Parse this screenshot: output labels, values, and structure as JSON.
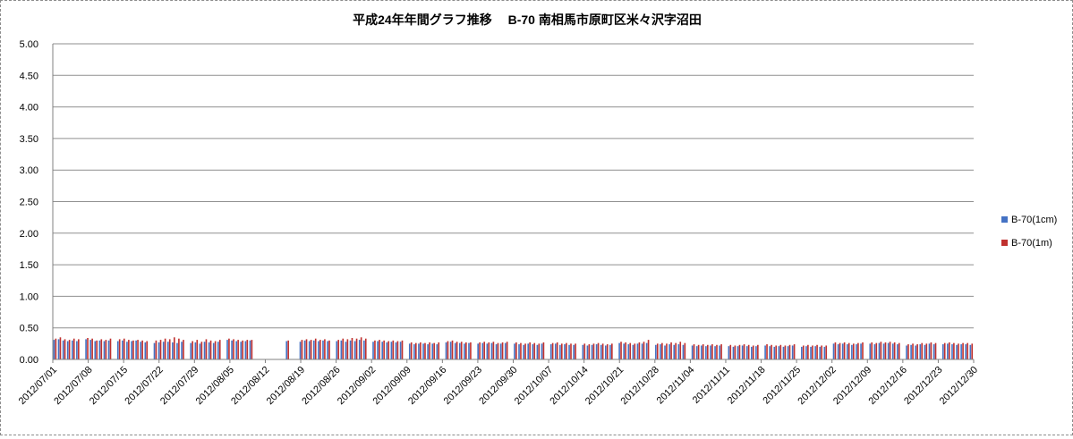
{
  "chart_data": {
    "type": "bar",
    "title": "平成24年年間グラフ推移　 B-70 南相馬市原町区米々沢字沼田",
    "xlabel": "",
    "ylabel": "",
    "ylim": [
      0,
      5
    ],
    "yticks": [
      "0.00",
      "0.50",
      "1.00",
      "1.50",
      "2.00",
      "2.50",
      "3.00",
      "3.50",
      "4.00",
      "4.50",
      "5.00"
    ],
    "grid": true,
    "legend_position": "right",
    "x_start": "2012/07/01",
    "x_end": "2012/12/30",
    "xtick_labels": [
      "2012/07/01",
      "2012/07/08",
      "2012/07/15",
      "2012/07/22",
      "2012/07/29",
      "2012/08/05",
      "2012/08/12",
      "2012/08/19",
      "2012/08/26",
      "2012/09/02",
      "2012/09/09",
      "2012/09/16",
      "2012/09/23",
      "2012/09/30",
      "2012/10/07",
      "2012/10/14",
      "2012/10/21",
      "2012/10/28",
      "2012/11/04",
      "2012/11/11",
      "2012/11/18",
      "2012/11/25",
      "2012/12/02",
      "2012/12/09",
      "2012/12/16",
      "2012/12/23",
      "2012/12/30"
    ],
    "series": [
      {
        "name": "B-70(1cm)",
        "color": "#4472C4",
        "values": [
          0.31,
          0.32,
          0.3,
          0.29,
          0.3,
          0.29,
          null,
          0.32,
          0.31,
          0.29,
          0.3,
          0.29,
          0.3,
          null,
          0.29,
          0.3,
          0.28,
          0.29,
          0.3,
          0.28,
          0.27,
          null,
          0.26,
          0.27,
          0.28,
          0.28,
          0.27,
          0.26,
          0.28,
          null,
          0.26,
          0.27,
          0.25,
          0.28,
          0.27,
          0.26,
          0.28,
          null,
          0.31,
          0.3,
          0.29,
          0.28,
          0.29,
          0.3,
          null,
          null,
          null,
          null,
          null,
          null,
          null,
          0.29,
          null,
          null,
          0.28,
          0.3,
          0.29,
          0.3,
          0.29,
          0.3,
          0.29,
          null,
          0.29,
          0.3,
          0.28,
          0.3,
          0.29,
          0.31,
          0.3,
          null,
          0.28,
          0.29,
          0.28,
          0.27,
          0.28,
          0.27,
          0.28,
          null,
          0.25,
          0.24,
          0.25,
          0.25,
          0.24,
          0.25,
          0.24,
          null,
          0.27,
          0.28,
          0.26,
          0.26,
          0.25,
          0.26,
          null,
          0.25,
          0.26,
          0.25,
          0.26,
          0.24,
          0.25,
          0.26,
          null,
          0.25,
          0.24,
          0.23,
          0.25,
          0.24,
          0.23,
          0.25,
          null,
          0.24,
          0.25,
          0.23,
          0.24,
          0.23,
          0.23,
          null,
          0.23,
          0.22,
          0.23,
          0.24,
          0.23,
          0.22,
          0.23,
          null,
          0.26,
          0.25,
          0.24,
          0.23,
          0.25,
          0.25,
          0.26,
          null,
          0.23,
          0.24,
          0.22,
          0.24,
          0.23,
          0.24,
          0.23,
          null,
          0.22,
          0.21,
          0.22,
          0.21,
          0.22,
          0.21,
          0.22,
          null,
          0.21,
          0.2,
          0.21,
          0.22,
          0.21,
          0.2,
          0.21,
          null,
          0.22,
          0.21,
          0.2,
          0.21,
          0.2,
          0.21,
          0.22,
          null,
          0.2,
          0.21,
          0.2,
          0.21,
          0.2,
          0.2,
          null,
          0.25,
          0.24,
          0.25,
          0.24,
          0.23,
          0.24,
          0.25,
          null,
          0.25,
          0.24,
          0.26,
          0.25,
          0.26,
          0.25,
          0.24,
          null,
          0.22,
          0.23,
          0.22,
          0.24,
          0.23,
          0.25,
          0.24,
          null,
          0.24,
          0.25,
          0.24,
          0.23,
          0.24,
          0.24,
          0.23
        ]
      },
      {
        "name": "B-70(1m)",
        "color": "#C0312F",
        "values": [
          0.33,
          0.35,
          0.32,
          0.31,
          0.33,
          0.32,
          null,
          0.34,
          0.33,
          0.3,
          0.32,
          0.31,
          0.33,
          null,
          0.32,
          0.33,
          0.31,
          0.3,
          0.31,
          0.3,
          0.29,
          null,
          0.3,
          0.31,
          0.33,
          0.32,
          0.35,
          0.33,
          0.31,
          null,
          0.29,
          0.31,
          0.28,
          0.32,
          0.3,
          0.29,
          0.31,
          null,
          0.33,
          0.32,
          0.31,
          0.3,
          0.31,
          0.31,
          null,
          null,
          null,
          null,
          null,
          null,
          null,
          0.3,
          null,
          null,
          0.31,
          0.32,
          0.31,
          0.33,
          0.31,
          0.32,
          0.3,
          null,
          0.31,
          0.33,
          0.32,
          0.34,
          0.33,
          0.35,
          0.33,
          null,
          0.3,
          0.31,
          0.3,
          0.29,
          0.3,
          0.29,
          0.3,
          null,
          0.27,
          0.26,
          0.27,
          0.26,
          0.27,
          0.26,
          0.27,
          null,
          0.29,
          0.3,
          0.28,
          0.28,
          0.27,
          0.27,
          null,
          0.27,
          0.28,
          0.27,
          0.28,
          0.26,
          0.27,
          0.28,
          null,
          0.27,
          0.26,
          0.25,
          0.27,
          0.26,
          0.25,
          0.27,
          null,
          0.26,
          0.27,
          0.25,
          0.26,
          0.25,
          0.25,
          null,
          0.25,
          0.24,
          0.25,
          0.26,
          0.25,
          0.24,
          0.25,
          null,
          0.28,
          0.27,
          0.26,
          0.25,
          0.27,
          0.28,
          0.31,
          null,
          0.25,
          0.26,
          0.25,
          0.27,
          0.26,
          0.28,
          0.26,
          null,
          0.24,
          0.23,
          0.24,
          0.23,
          0.24,
          0.23,
          0.24,
          null,
          0.23,
          0.22,
          0.23,
          0.24,
          0.23,
          0.22,
          0.23,
          null,
          0.24,
          0.23,
          0.22,
          0.23,
          0.22,
          0.23,
          0.24,
          null,
          0.22,
          0.23,
          0.22,
          0.23,
          0.22,
          0.22,
          null,
          0.27,
          0.26,
          0.27,
          0.26,
          0.25,
          0.26,
          0.27,
          null,
          0.27,
          0.26,
          0.28,
          0.27,
          0.28,
          0.27,
          0.26,
          null,
          0.24,
          0.25,
          0.24,
          0.26,
          0.25,
          0.27,
          0.26,
          null,
          0.26,
          0.27,
          0.26,
          0.25,
          0.26,
          0.26,
          0.25
        ]
      }
    ]
  }
}
